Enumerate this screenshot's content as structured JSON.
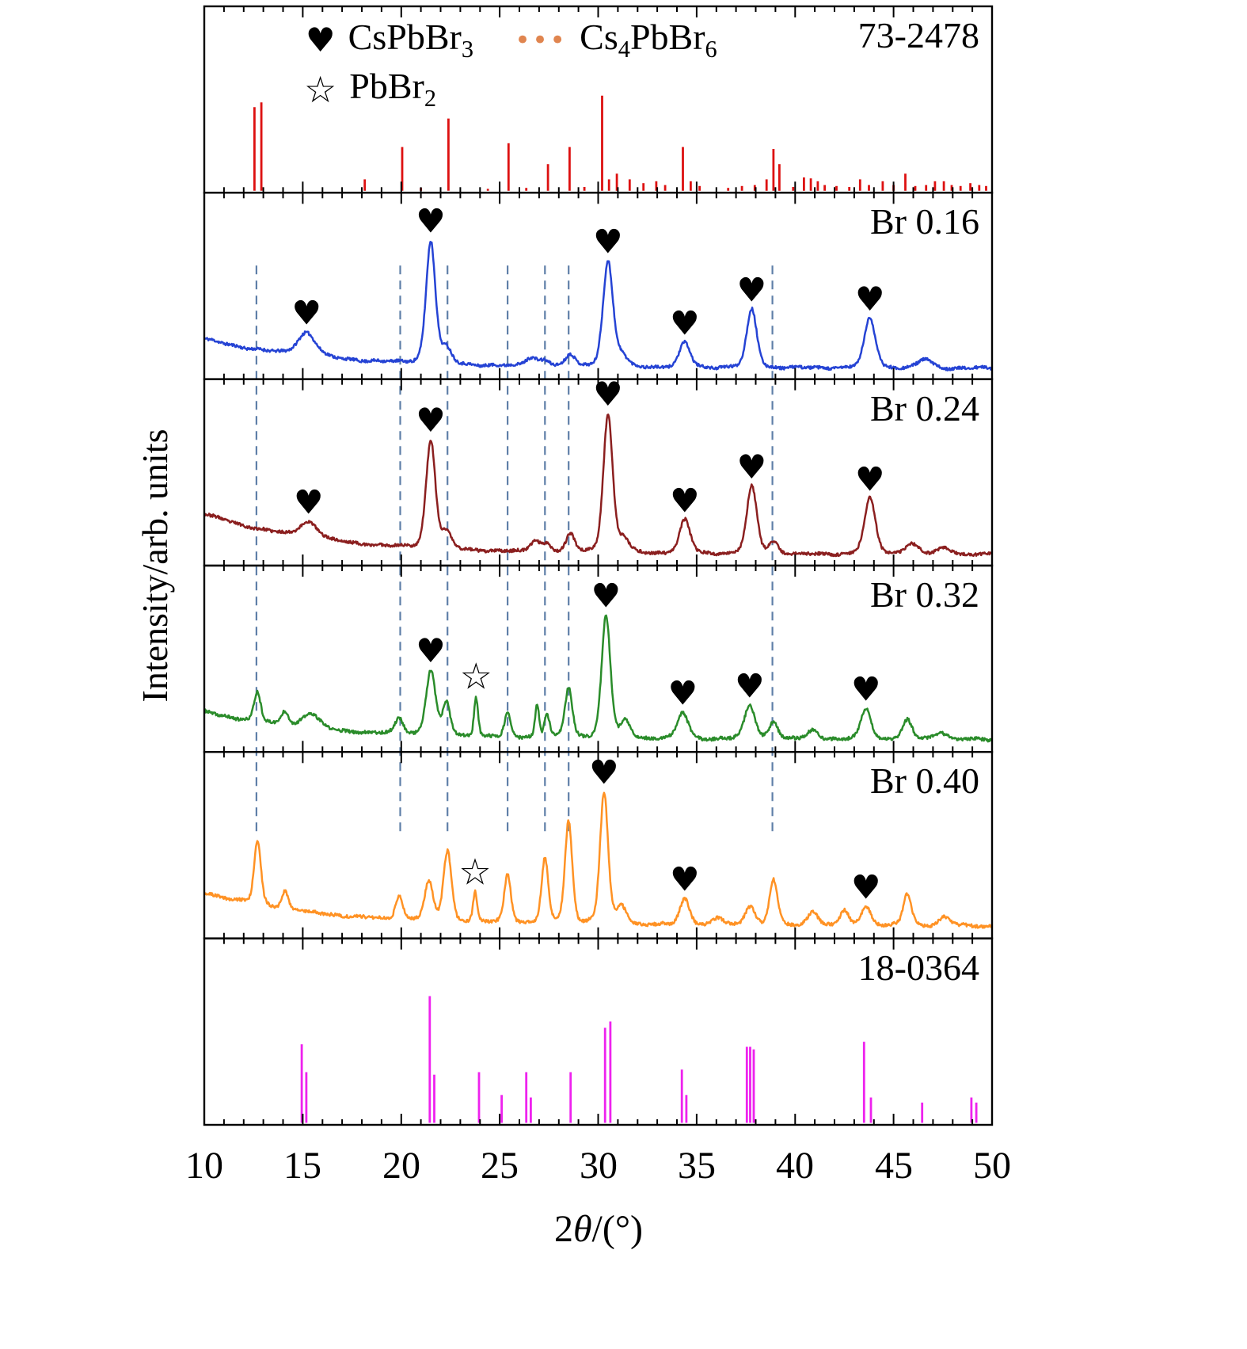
{
  "figure": {
    "y_axis_label": "Intensity/arb. units",
    "x_label_pre": "2",
    "x_label_theta": "θ",
    "x_label_post": "/(°)"
  },
  "legend": {
    "cspbbr3": {
      "symbol": "♥",
      "text_main": "CsPbBr",
      "text_sub": "3"
    },
    "cs4pbbr6": {
      "symbol": "•••",
      "t1": "Cs",
      "s1": "4",
      "t2": "PbBr",
      "s2": "6"
    },
    "pbbr2": {
      "symbol": "☆",
      "text_main": "PbBr",
      "text_sub": "2"
    }
  },
  "chart_data": {
    "type": "line",
    "xlabel": "2θ/(°)",
    "ylabel": "Intensity/arb. units",
    "x_range": [
      10,
      50
    ],
    "x_ticks": [
      10,
      15,
      20,
      25,
      30,
      35,
      40,
      45,
      50
    ],
    "x_tick_labels": [
      "10",
      "15",
      "20",
      "25",
      "30",
      "35",
      "40",
      "45",
      "50"
    ],
    "x_minor_tick_step": 1,
    "grid": false,
    "dashed_guides_2theta": [
      12.65,
      19.95,
      22.35,
      25.4,
      27.3,
      28.5,
      38.85
    ],
    "guide_color": "#5f7fa8",
    "marker_legend": {
      "heart": "CsPbBr3",
      "dots": "Cs4PbBr6",
      "star": "PbBr2"
    },
    "panels": [
      {
        "label": "73-2478",
        "kind": "sticks",
        "color": "#dd1111",
        "stick_scale": 0.51,
        "sticks": [
          [
            12.55,
            0.88
          ],
          [
            12.9,
            0.93
          ],
          [
            18.15,
            0.12
          ],
          [
            20.05,
            0.46
          ],
          [
            21.0,
            0.03
          ],
          [
            22.4,
            0.76
          ],
          [
            24.4,
            0.02
          ],
          [
            25.45,
            0.5
          ],
          [
            26.35,
            0.03
          ],
          [
            27.45,
            0.28
          ],
          [
            28.55,
            0.46
          ],
          [
            29.3,
            0.04
          ],
          [
            30.2,
            1.0
          ],
          [
            30.55,
            0.12
          ],
          [
            30.95,
            0.18
          ],
          [
            31.6,
            0.12
          ],
          [
            32.3,
            0.08
          ],
          [
            32.95,
            0.1
          ],
          [
            33.4,
            0.06
          ],
          [
            34.3,
            0.46
          ],
          [
            34.7,
            0.1
          ],
          [
            35.15,
            0.05
          ],
          [
            36.6,
            0.03
          ],
          [
            37.3,
            0.05
          ],
          [
            37.95,
            0.06
          ],
          [
            38.55,
            0.12
          ],
          [
            38.9,
            0.44
          ],
          [
            39.2,
            0.28
          ],
          [
            39.9,
            0.04
          ],
          [
            40.45,
            0.14
          ],
          [
            40.8,
            0.13
          ],
          [
            41.15,
            0.1
          ],
          [
            41.5,
            0.06
          ],
          [
            42.1,
            0.05
          ],
          [
            42.75,
            0.04
          ],
          [
            43.3,
            0.12
          ],
          [
            43.75,
            0.06
          ],
          [
            44.45,
            0.1
          ],
          [
            45.0,
            0.06
          ],
          [
            45.6,
            0.18
          ],
          [
            46.1,
            0.05
          ],
          [
            46.65,
            0.06
          ],
          [
            47.1,
            0.1
          ],
          [
            47.55,
            0.1
          ],
          [
            47.95,
            0.06
          ],
          [
            48.4,
            0.05
          ],
          [
            48.9,
            0.08
          ],
          [
            49.35,
            0.06
          ],
          [
            49.7,
            0.05
          ]
        ]
      },
      {
        "label": "Br 0.16",
        "kind": "curve",
        "color": "#2543d4",
        "background": [
          0.22,
          0.02
        ],
        "noise": 0.01,
        "seed": 11,
        "peaks": [
          [
            15.2,
            0.16,
            0.55
          ],
          [
            21.5,
            0.84,
            0.28
          ],
          [
            22.3,
            0.1,
            0.3
          ],
          [
            26.6,
            0.06,
            0.35
          ],
          [
            27.3,
            0.04,
            0.3
          ],
          [
            28.6,
            0.08,
            0.28
          ],
          [
            30.5,
            0.72,
            0.3
          ],
          [
            31.2,
            0.07,
            0.3
          ],
          [
            34.4,
            0.17,
            0.32
          ],
          [
            37.8,
            0.4,
            0.3
          ],
          [
            43.8,
            0.34,
            0.33
          ],
          [
            46.6,
            0.06,
            0.4
          ]
        ],
        "heart_markers_2theta": [
          15.2,
          21.5,
          30.5,
          34.4,
          37.8,
          43.8
        ],
        "star_markers_2theta": []
      },
      {
        "label": "Br 0.24",
        "kind": "curve",
        "color": "#8b1f1f",
        "background": [
          0.3,
          0.02
        ],
        "noise": 0.01,
        "seed": 23,
        "peaks": [
          [
            15.3,
            0.11,
            0.55
          ],
          [
            21.5,
            0.74,
            0.28
          ],
          [
            22.3,
            0.11,
            0.28
          ],
          [
            26.8,
            0.08,
            0.28
          ],
          [
            27.4,
            0.06,
            0.25
          ],
          [
            28.6,
            0.12,
            0.26
          ],
          [
            30.5,
            0.95,
            0.28
          ],
          [
            31.3,
            0.09,
            0.3
          ],
          [
            34.4,
            0.23,
            0.32
          ],
          [
            37.8,
            0.46,
            0.3
          ],
          [
            38.9,
            0.08,
            0.28
          ],
          [
            43.8,
            0.38,
            0.33
          ],
          [
            45.9,
            0.07,
            0.4
          ],
          [
            47.6,
            0.05,
            0.4
          ]
        ],
        "heart_markers_2theta": [
          15.3,
          21.5,
          30.5,
          34.4,
          37.8,
          43.8
        ],
        "star_markers_2theta": []
      },
      {
        "label": "Br 0.32",
        "kind": "curve",
        "color": "#2a8c2a",
        "background": [
          0.22,
          0.03
        ],
        "noise": 0.011,
        "seed": 37,
        "peaks": [
          [
            12.7,
            0.2,
            0.2
          ],
          [
            14.1,
            0.1,
            0.22
          ],
          [
            15.4,
            0.1,
            0.5
          ],
          [
            19.9,
            0.11,
            0.25
          ],
          [
            21.5,
            0.44,
            0.28
          ],
          [
            22.3,
            0.22,
            0.22
          ],
          [
            23.8,
            0.27,
            0.12
          ],
          [
            25.4,
            0.16,
            0.18
          ],
          [
            26.9,
            0.22,
            0.12
          ],
          [
            27.4,
            0.16,
            0.15
          ],
          [
            28.5,
            0.34,
            0.22
          ],
          [
            30.4,
            0.84,
            0.26
          ],
          [
            31.4,
            0.11,
            0.3
          ],
          [
            34.3,
            0.18,
            0.32
          ],
          [
            37.7,
            0.23,
            0.32
          ],
          [
            38.9,
            0.12,
            0.26
          ],
          [
            40.9,
            0.06,
            0.35
          ],
          [
            43.6,
            0.21,
            0.3
          ],
          [
            45.7,
            0.13,
            0.28
          ],
          [
            47.4,
            0.05,
            0.4
          ]
        ],
        "heart_markers_2theta": [
          21.5,
          30.4,
          34.3,
          37.7,
          43.6
        ],
        "star_markers_2theta": [
          23.8
        ]
      },
      {
        "label": "Br 0.40",
        "kind": "curve",
        "color": "#ff9224",
        "background": [
          0.26,
          0.03
        ],
        "noise": 0.011,
        "seed": 51,
        "peaks": [
          [
            12.7,
            0.44,
            0.2
          ],
          [
            14.1,
            0.12,
            0.2
          ],
          [
            19.9,
            0.16,
            0.22
          ],
          [
            21.4,
            0.26,
            0.25
          ],
          [
            22.35,
            0.48,
            0.24
          ],
          [
            23.75,
            0.2,
            0.12
          ],
          [
            25.4,
            0.34,
            0.2
          ],
          [
            27.3,
            0.44,
            0.2
          ],
          [
            28.5,
            0.7,
            0.22
          ],
          [
            30.3,
            0.9,
            0.24
          ],
          [
            31.2,
            0.12,
            0.3
          ],
          [
            34.4,
            0.18,
            0.3
          ],
          [
            36.1,
            0.05,
            0.3
          ],
          [
            37.7,
            0.13,
            0.3
          ],
          [
            38.9,
            0.31,
            0.24
          ],
          [
            40.9,
            0.1,
            0.3
          ],
          [
            42.5,
            0.1,
            0.25
          ],
          [
            43.6,
            0.13,
            0.3
          ],
          [
            45.7,
            0.22,
            0.24
          ],
          [
            47.6,
            0.06,
            0.35
          ]
        ],
        "heart_markers_2theta": [
          30.3,
          34.4,
          43.6
        ],
        "star_markers_2theta": [
          23.75
        ]
      },
      {
        "label": "18-0364",
        "kind": "sticks",
        "color": "#ee22ee",
        "stick_scale": 0.68,
        "sticks": [
          [
            14.95,
            0.62
          ],
          [
            15.18,
            0.4
          ],
          [
            21.45,
            1.0
          ],
          [
            21.68,
            0.38
          ],
          [
            23.95,
            0.4
          ],
          [
            25.1,
            0.22
          ],
          [
            26.35,
            0.4
          ],
          [
            26.58,
            0.2
          ],
          [
            28.6,
            0.4
          ],
          [
            30.35,
            0.75
          ],
          [
            30.62,
            0.8
          ],
          [
            34.25,
            0.42
          ],
          [
            34.48,
            0.22
          ],
          [
            37.55,
            0.6
          ],
          [
            37.72,
            0.6
          ],
          [
            37.9,
            0.58
          ],
          [
            43.5,
            0.64
          ],
          [
            43.85,
            0.2
          ],
          [
            46.45,
            0.16
          ],
          [
            48.95,
            0.2
          ],
          [
            49.2,
            0.16
          ]
        ]
      }
    ]
  }
}
